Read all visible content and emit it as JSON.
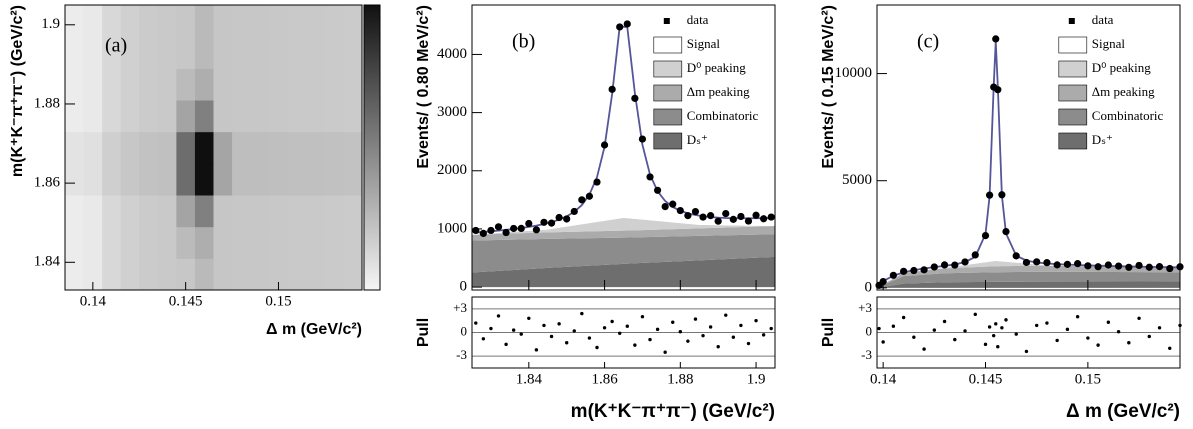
{
  "chart_data": [
    {
      "type": "heatmap",
      "panel_label": "(a)",
      "xlabel": "Δ m (GeV/c²)",
      "ylabel": "m(K⁺K⁻π⁺π⁻) (GeV/c²)",
      "xlim": [
        0.1385,
        0.1545
      ],
      "xticks": [
        0.14,
        0.145,
        0.15
      ],
      "ylim": [
        1.833,
        1.905
      ],
      "yticks": [
        1.84,
        1.86,
        1.88,
        1.9
      ],
      "xbins": [
        0.1385,
        0.1395,
        0.1405,
        0.1415,
        0.1425,
        0.1435,
        0.1445,
        0.1455,
        0.1465,
        0.1475,
        0.1485,
        0.1495,
        0.1505,
        0.1515,
        0.1525,
        0.1535,
        0.1545
      ],
      "ybins": [
        1.833,
        1.841,
        1.849,
        1.857,
        1.865,
        1.873,
        1.881,
        1.889,
        1.897,
        1.905
      ],
      "z": [
        [
          8,
          10,
          25,
          32,
          36,
          38,
          40,
          51,
          41,
          40,
          40,
          39,
          38,
          38,
          37,
          36
        ],
        [
          8,
          10,
          25,
          32,
          36,
          38,
          50,
          61,
          41,
          40,
          40,
          39,
          38,
          38,
          37,
          36
        ],
        [
          8,
          10,
          25,
          32,
          36,
          38,
          70,
          101,
          41,
          40,
          40,
          39,
          38,
          38,
          37,
          36
        ],
        [
          16,
          18,
          33,
          40,
          44,
          46,
          118,
          199,
          69,
          48,
          48,
          47,
          46,
          46,
          45,
          44
        ],
        [
          16,
          18,
          33,
          40,
          44,
          46,
          118,
          199,
          69,
          48,
          48,
          47,
          46,
          46,
          45,
          44
        ],
        [
          8,
          10,
          25,
          32,
          36,
          38,
          70,
          101,
          41,
          40,
          40,
          39,
          38,
          38,
          37,
          36
        ],
        [
          8,
          10,
          25,
          32,
          36,
          38,
          50,
          61,
          41,
          40,
          40,
          39,
          38,
          38,
          37,
          36
        ],
        [
          8,
          10,
          25,
          32,
          36,
          38,
          40,
          51,
          41,
          40,
          40,
          39,
          38,
          38,
          37,
          36
        ],
        [
          8,
          10,
          25,
          32,
          36,
          38,
          40,
          51,
          41,
          40,
          40,
          39,
          38,
          38,
          37,
          36
        ]
      ]
    },
    {
      "type": "fit",
      "panel_label": "(b)",
      "xlabel": "m(K⁺K⁻π⁺π⁻) (GeV/c²)",
      "ylabel": "Events/ ( 0.80 MeV/c²)",
      "xlim": [
        1.825,
        1.905
      ],
      "xticks": [
        1.84,
        1.86,
        1.88,
        1.9
      ],
      "ylim": [
        -50,
        4850
      ],
      "yticks": [
        0,
        1000,
        2000,
        3000,
        4000
      ],
      "x": [
        1.826,
        1.828,
        1.83,
        1.832,
        1.834,
        1.836,
        1.838,
        1.84,
        1.842,
        1.844,
        1.846,
        1.848,
        1.85,
        1.852,
        1.854,
        1.856,
        1.858,
        1.86,
        1.862,
        1.864,
        1.866,
        1.868,
        1.87,
        1.872,
        1.874,
        1.876,
        1.878,
        1.88,
        1.882,
        1.884,
        1.886,
        1.888,
        1.89,
        1.892,
        1.894,
        1.896,
        1.898,
        1.9,
        1.902,
        1.904
      ],
      "data": {
        "name": "data",
        "color": "#000000",
        "values": [
          974,
          923,
          974,
          1036,
          938,
          1008,
          1009,
          1093,
          985,
          1114,
          1100,
          1196,
          1171,
          1301,
          1500,
          1562,
          1806,
          2443,
          3400,
          4473,
          4524,
          3245,
          2545,
          1894,
          1664,
          1384,
          1426,
          1316,
          1229,
          1299,
          1204,
          1229,
          1133,
          1264,
          1164,
          1214,
          1135,
          1235,
          1175,
          1204
        ]
      },
      "fit": {
        "color": "#55559a",
        "values": [
          937,
          948,
          959,
          971,
          985,
          999,
          1015,
          1035,
          1057,
          1084,
          1117,
          1159,
          1216,
          1294,
          1410,
          1590,
          1889,
          2414,
          3319,
          4480,
          4470,
          3338,
          2446,
          1934,
          1648,
          1480,
          1378,
          1312,
          1268,
          1239,
          1218,
          1205,
          1195,
          1188,
          1185,
          1183,
          1183,
          1183,
          1185,
          1187
        ]
      },
      "components": {
        "x": [
          1.825,
          1.845,
          1.865,
          1.885,
          1.905
        ],
        "series": [
          {
            "name": "Signal",
            "color": "#ffffff",
            "values": [
              37,
              110,
              3290,
              158,
              137
            ]
          },
          {
            "name": "D⁰ peaking",
            "color": "#d0d0d0",
            "values": [
              0,
              50,
              220,
              60,
              0
            ]
          },
          {
            "name": "Δm peaking",
            "color": "#ababab",
            "values": [
              100,
              110,
              120,
              130,
              140
            ]
          },
          {
            "name": "Combinatoric",
            "color": "#8c8c8c",
            "values": [
              550,
              500,
              450,
              420,
              390
            ]
          },
          {
            "name": "Dₛ⁺",
            "color": "#6e6e6e",
            "values": [
              250,
              330,
              400,
              460,
              520
            ]
          }
        ]
      },
      "legend": "upper right",
      "pull": {
        "ylabel": "Pull",
        "ylim": [
          -4.5,
          4.5
        ],
        "yticks": [
          {
            "value": 3,
            "label": "+3"
          },
          0,
          -3
        ],
        "values": [
          1.2,
          -0.8,
          0.5,
          2.1,
          -1.5,
          0.3,
          -0.2,
          1.8,
          -2.2,
          0.9,
          -0.5,
          1.1,
          -1.3,
          0.2,
          2.4,
          -0.7,
          -1.9,
          0.6,
          1.4,
          -0.1,
          0.8,
          -1.6,
          2.0,
          -0.9,
          0.4,
          -2.5,
          1.3,
          0.1,
          -1.1,
          1.7,
          -0.4,
          0.7,
          -1.8,
          2.2,
          -0.6,
          0.9,
          -1.4,
          1.5,
          -0.3,
          0.5
        ]
      }
    },
    {
      "type": "fit",
      "panel_label": "(c)",
      "xlabel": "Δ m (GeV/c²)",
      "ylabel": "Events/ ( 0.15 MeV/c²)",
      "xlim": [
        0.1397,
        0.1545
      ],
      "xticks": [
        0.14,
        0.145,
        0.15
      ],
      "ylim": [
        -100,
        13200
      ],
      "yticks": [
        0,
        5000,
        10000
      ],
      "x": [
        0.1398,
        0.14,
        0.1405,
        0.141,
        0.1415,
        0.142,
        0.1425,
        0.143,
        0.1435,
        0.144,
        0.1445,
        0.145,
        0.1452,
        0.1454,
        0.1455,
        0.1456,
        0.1458,
        0.146,
        0.1465,
        0.147,
        0.1475,
        0.148,
        0.1485,
        0.149,
        0.1495,
        0.15,
        0.1505,
        0.151,
        0.1515,
        0.152,
        0.1525,
        0.153,
        0.1535,
        0.154,
        0.1545
      ],
      "data": {
        "name": "data",
        "color": "#000000",
        "values": [
          117,
          293,
          586,
          771,
          809,
          841,
          975,
          1071,
          1063,
          1209,
          1538,
          2439,
          4326,
          9371,
          11618,
          9247,
          4344,
          2625,
          1492,
          1186,
          1214,
          1176,
          1073,
          1097,
          1131,
          1027,
          985,
          1066,
          1015,
          959,
          1046,
          962,
          991,
          902,
          984
        ]
      },
      "fit": {
        "color": "#55559a",
        "values": [
          112,
          314,
          567,
          720,
          826,
          904,
          966,
          1026,
          1093,
          1202,
          1450,
          2514,
          4280,
          9410,
          11500,
          9422,
          4305,
          2544,
          1500,
          1272,
          1183,
          1136,
          1106,
          1084,
          1066,
          1050,
          1037,
          1024,
          1012,
          1000,
          989,
          978,
          972,
          964,
          956
        ]
      },
      "components": {
        "x": [
          0.1397,
          0.141,
          0.143,
          0.1455,
          0.148,
          0.1545
        ],
        "series": [
          {
            "name": "Signal",
            "color": "#ffffff",
            "values": [
              50,
              20,
              96,
              10240,
              86,
              0
            ]
          },
          {
            "name": "D⁰ peaking",
            "color": "#d0d0d0",
            "values": [
              0,
              0,
              20,
              250,
              20,
              0
            ]
          },
          {
            "name": "Δm peaking",
            "color": "#ababab",
            "values": [
              0,
              150,
              230,
              280,
              280,
              230
            ]
          },
          {
            "name": "Combinatoric",
            "color": "#8c8c8c",
            "values": [
              0,
              350,
              420,
              450,
              460,
              430
            ]
          },
          {
            "name": "Dₛ⁺",
            "color": "#6e6e6e",
            "values": [
              0,
              200,
              260,
              280,
              290,
              300
            ]
          }
        ]
      },
      "legend": "upper right",
      "pull": {
        "ylabel": "Pull",
        "ylim": [
          -4.5,
          4.5
        ],
        "yticks": [
          {
            "value": 3,
            "label": "+3"
          },
          0,
          -3
        ],
        "values": [
          0.5,
          -1.2,
          0.8,
          1.9,
          -0.6,
          -2.1,
          0.3,
          1.4,
          -0.9,
          0.2,
          2.3,
          -1.5,
          0.7,
          -0.4,
          1.1,
          -1.8,
          0.6,
          1.6,
          -0.2,
          -2.4,
          0.9,
          1.2,
          -1.0,
          0.4,
          2.0,
          -0.7,
          -1.6,
          1.3,
          0.1,
          -1.3,
          1.8,
          -0.5,
          0.6,
          -2.0,
          0.9
        ]
      }
    }
  ]
}
